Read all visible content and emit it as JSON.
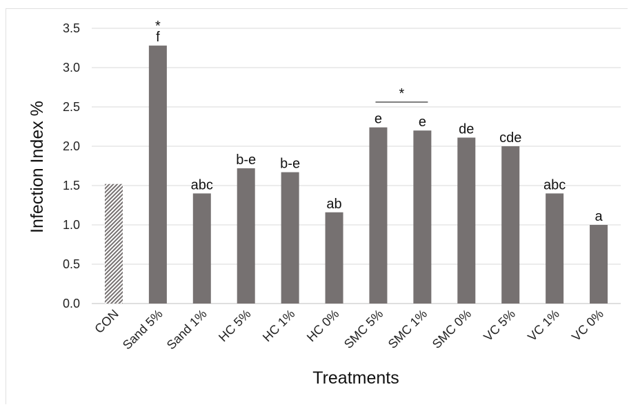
{
  "chart_data": {
    "type": "bar",
    "title": "",
    "xlabel": "Treatments",
    "ylabel": "Infection Index %",
    "ylim": [
      0,
      3.5
    ],
    "yticks": [
      "0.0",
      "0.5",
      "1.0",
      "1.5",
      "2.0",
      "2.5",
      "3.0",
      "3.5"
    ],
    "grid": "horizontal",
    "categories": [
      "CON",
      "Sand 5%",
      "Sand 1%",
      "HC 5%",
      "HC 1%",
      "HC 0%",
      "SMC 5%",
      "SMC 1%",
      "SMC 0%",
      "VC 5%",
      "VC 1%",
      "VC 0%"
    ],
    "values": [
      1.52,
      3.28,
      1.4,
      1.72,
      1.67,
      1.16,
      2.24,
      2.2,
      2.11,
      2.0,
      1.4,
      1.0
    ],
    "data_labels": [
      "",
      "f",
      "abc",
      "b-e",
      "b-e",
      "ab",
      "e",
      "e",
      "de",
      "cde",
      "abc",
      "a"
    ],
    "annotations": [
      {
        "text": "*",
        "category": "Sand 5%"
      },
      {
        "text": "*",
        "from": "SMC 5%",
        "to": "SMC 1%"
      }
    ],
    "colors": {
      "bar": "#767171",
      "control_hatch": "#767171",
      "grid": "#d9d9d9"
    }
  }
}
